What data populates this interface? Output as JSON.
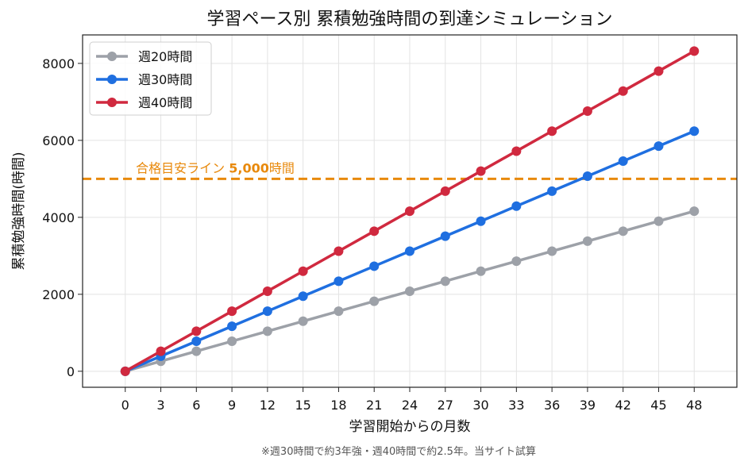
{
  "chart_data": {
    "type": "line",
    "title": "学習ペース別 累積勉強時間の到達シミュレーション",
    "xlabel": "学習開始からの月数",
    "ylabel": "累積勉強時間(時間)",
    "x": [
      0,
      3,
      6,
      9,
      12,
      15,
      18,
      21,
      24,
      27,
      30,
      33,
      36,
      39,
      42,
      45,
      48
    ],
    "xlim": [
      -3.6,
      51.6
    ],
    "ylim": [
      -416,
      8740
    ],
    "yticks": [
      0,
      2000,
      4000,
      6000,
      8000
    ],
    "xticks": [
      0,
      3,
      6,
      9,
      12,
      15,
      18,
      21,
      24,
      27,
      30,
      33,
      36,
      39,
      42,
      45,
      48
    ],
    "grid": true,
    "legend_position": "top-left",
    "series": [
      {
        "name": "週20時間",
        "color": "#9da1a8",
        "values": [
          0,
          260,
          520,
          780,
          1040,
          1300,
          1560,
          1820,
          2080,
          2340,
          2600,
          2860,
          3120,
          3380,
          3640,
          3900,
          4160
        ]
      },
      {
        "name": "週30時間",
        "color": "#1f6fe0",
        "values": [
          0,
          390,
          780,
          1170,
          1560,
          1950,
          2340,
          2730,
          3120,
          3510,
          3900,
          4290,
          4680,
          5070,
          5460,
          5850,
          6240
        ]
      },
      {
        "name": "週40時間",
        "color": "#d0293f",
        "values": [
          0,
          520,
          1040,
          1560,
          2080,
          2600,
          3120,
          3640,
          4160,
          4680,
          5200,
          5720,
          6240,
          6760,
          7280,
          7800,
          8320
        ]
      }
    ],
    "reference_line": {
      "value": 5000,
      "color": "#e8890c",
      "label_prefix": "合格目安ライン ",
      "label_value": "5,000",
      "label_suffix": "時間"
    },
    "footnote": "※週30時間で約3年強・週40時間で約2.5年。当サイト試算"
  }
}
